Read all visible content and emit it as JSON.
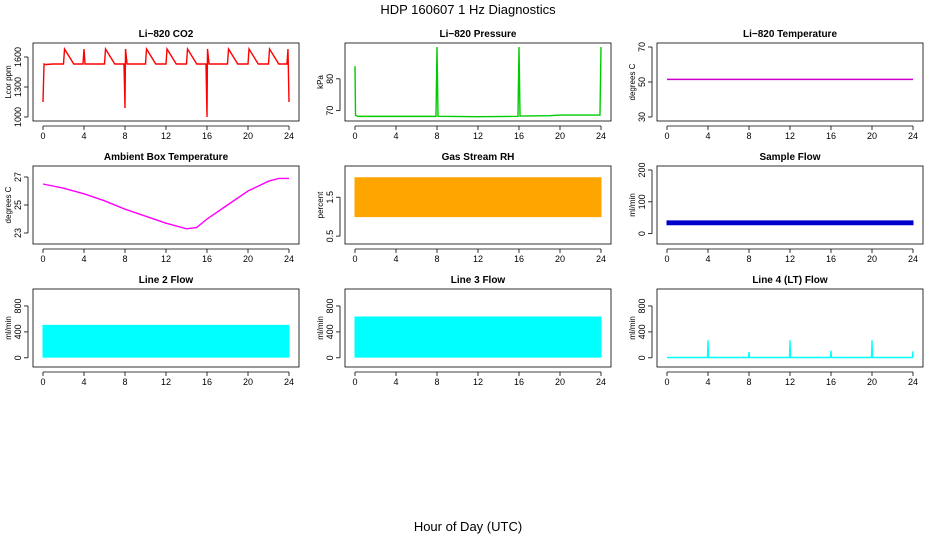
{
  "figure": {
    "title": "HDP  160607  1 Hz Diagnostics",
    "xlabel": "Hour of Day (UTC)"
  },
  "chart_data": [
    {
      "type": "line",
      "title": "Li−820 CO2",
      "ylabel": "Lcor ppm",
      "xlim": [
        0,
        24
      ],
      "ylim": [
        1000,
        1700
      ],
      "xticks": [
        0,
        4,
        8,
        12,
        16,
        20,
        24
      ],
      "yticks": [
        1000,
        1300,
        1600
      ],
      "color": "#ff0000",
      "series": [
        {
          "x": [
            0,
            0.1,
            0.3,
            1,
            2,
            2.1,
            3,
            3.9,
            4,
            4.1,
            5,
            6,
            6.1,
            7,
            7.9,
            8,
            8.05,
            8.2,
            9,
            10,
            10.1,
            11,
            12,
            12.1,
            13,
            14,
            14.1,
            15,
            15.9,
            16,
            16.05,
            16.2,
            17,
            18,
            18.1,
            19,
            20,
            20.1,
            21,
            22,
            22.1,
            23,
            23.8,
            23.9,
            24
          ],
          "y": [
            1150,
            1530,
            1525,
            1530,
            1530,
            1680,
            1530,
            1530,
            1680,
            1530,
            1530,
            1530,
            1680,
            1530,
            1530,
            1090,
            1680,
            1530,
            1530,
            1530,
            1680,
            1530,
            1530,
            1680,
            1530,
            1530,
            1680,
            1530,
            1530,
            1000,
            1680,
            1530,
            1530,
            1530,
            1680,
            1530,
            1530,
            1680,
            1530,
            1530,
            1680,
            1530,
            1530,
            1680,
            1150
          ]
        }
      ]
    },
    {
      "type": "line",
      "title": "Li−820 Pressure",
      "ylabel": "kPa",
      "xlim": [
        0,
        24
      ],
      "ylim": [
        68,
        90
      ],
      "xticks": [
        0,
        4,
        8,
        12,
        16,
        20,
        24
      ],
      "yticks": [
        70,
        80
      ],
      "color": "#00cc00",
      "series": [
        {
          "x": [
            0,
            0.05,
            0.3,
            4,
            7.9,
            8,
            8.1,
            12,
            15.9,
            16,
            16.1,
            19,
            20,
            23.9,
            24
          ],
          "y": [
            84,
            68.5,
            68.2,
            68.2,
            68.2,
            90,
            68.2,
            68.1,
            68.2,
            90,
            68.3,
            68.4,
            68.6,
            68.6,
            90
          ]
        }
      ]
    },
    {
      "type": "line",
      "title": "Li−820 Temperature",
      "ylabel": "degrees C",
      "xlim": [
        0,
        24
      ],
      "ylim": [
        30,
        70
      ],
      "xticks": [
        0,
        4,
        8,
        12,
        16,
        20,
        24
      ],
      "yticks": [
        30,
        50,
        70
      ],
      "color": "#cc00cc",
      "series": [
        {
          "x": [
            0,
            24
          ],
          "y": [
            51.5,
            51.5
          ]
        }
      ]
    },
    {
      "type": "line",
      "title": "Ambient Box Temperature",
      "ylabel": "degrees C",
      "xlim": [
        0,
        24
      ],
      "ylim": [
        22.5,
        27.5
      ],
      "xticks": [
        0,
        4,
        8,
        12,
        16,
        20,
        24
      ],
      "yticks": [
        23,
        25,
        27
      ],
      "color": "#ff00ff",
      "series": [
        {
          "x": [
            0,
            2,
            4,
            6,
            8,
            10,
            12,
            14,
            15,
            16,
            18,
            20,
            22,
            23,
            24
          ],
          "y": [
            26.5,
            26.2,
            25.8,
            25.3,
            24.7,
            24.2,
            23.7,
            23.3,
            23.4,
            24.0,
            25.0,
            26.0,
            26.7,
            26.9,
            26.9
          ]
        }
      ]
    },
    {
      "type": "area",
      "title": "Gas Stream RH",
      "ylabel": "percent",
      "xlim": [
        0,
        24
      ],
      "ylim": [
        0.4,
        2.2
      ],
      "xticks": [
        0,
        4,
        8,
        12,
        16,
        20,
        24
      ],
      "yticks": [
        0.5,
        1.5
      ],
      "color": "#ffa500",
      "series": [
        {
          "x": [
            0,
            24
          ],
          "high": [
            2.0,
            2.0
          ],
          "low": [
            1.0,
            1.0
          ]
        }
      ]
    },
    {
      "type": "area",
      "title": "Sample Flow",
      "ylabel": "ml/min",
      "xlim": [
        0,
        24
      ],
      "ylim": [
        -20,
        200
      ],
      "xticks": [
        0,
        4,
        8,
        12,
        16,
        20,
        24
      ],
      "yticks": [
        0,
        100,
        200
      ],
      "color": "#0000cc",
      "series": [
        {
          "x": [
            0,
            24
          ],
          "high": [
            40,
            40
          ],
          "low": [
            28,
            28
          ]
        }
      ]
    },
    {
      "type": "area",
      "title": "Line 2 Flow",
      "ylabel": "ml/min",
      "xlim": [
        0,
        24
      ],
      "ylim": [
        -80,
        1000
      ],
      "xticks": [
        0,
        4,
        8,
        12,
        16,
        20,
        24
      ],
      "yticks": [
        0,
        400,
        800
      ],
      "color": "#00ffff",
      "series": [
        {
          "x": [
            0,
            24
          ],
          "high": [
            500,
            500
          ],
          "low": [
            10,
            10
          ]
        }
      ]
    },
    {
      "type": "area",
      "title": "Line 3 Flow",
      "ylabel": "ml/min",
      "xlim": [
        0,
        24
      ],
      "ylim": [
        -80,
        1000
      ],
      "xticks": [
        0,
        4,
        8,
        12,
        16,
        20,
        24
      ],
      "yticks": [
        0,
        400,
        800
      ],
      "color": "#00ffff",
      "series": [
        {
          "x": [
            0,
            24
          ],
          "high": [
            630,
            630
          ],
          "low": [
            10,
            10
          ]
        }
      ]
    },
    {
      "type": "line",
      "title": "Line 4 (LT) Flow",
      "ylabel": "ml/min",
      "xlim": [
        0,
        24
      ],
      "ylim": [
        -80,
        1000
      ],
      "xticks": [
        0,
        4,
        8,
        12,
        16,
        20,
        24
      ],
      "yticks": [
        0,
        400,
        800
      ],
      "color": "#00ffff",
      "series": [
        {
          "x": [
            0,
            3.95,
            4,
            4.05,
            7.95,
            8,
            8.05,
            11.95,
            12,
            12.05,
            15.95,
            16,
            16.05,
            19.95,
            20,
            20.05,
            23.95,
            24
          ],
          "y": [
            5,
            5,
            270,
            5,
            5,
            90,
            5,
            5,
            270,
            5,
            5,
            110,
            5,
            5,
            270,
            5,
            5,
            100
          ]
        }
      ]
    }
  ]
}
